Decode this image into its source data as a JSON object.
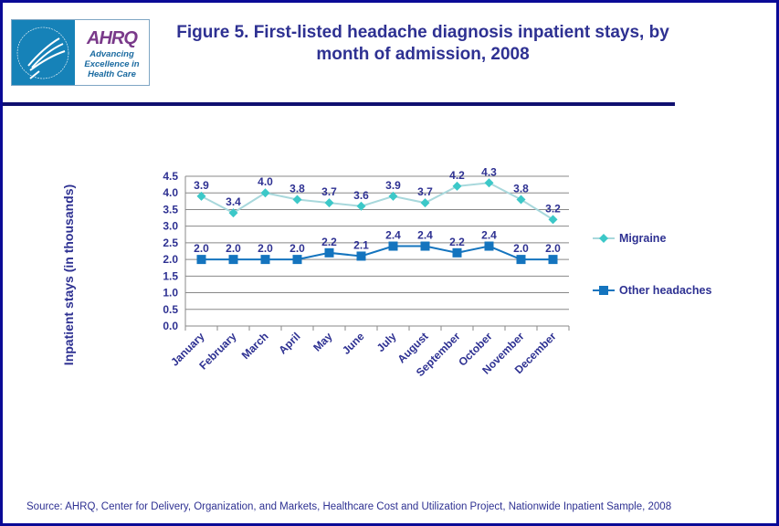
{
  "logo": {
    "agency": "AHRQ",
    "tagline": [
      "Advancing",
      "Excellence in",
      "Health Care"
    ],
    "seal_text": "DEPARTMENT OF HEALTH & HUMAN SERVICES USA"
  },
  "title": "Figure 5. First-listed headache diagnosis inpatient stays, by month of admission, 2008",
  "source": "Source: AHRQ,  Center for Delivery, Organization, and Markets, Healthcare Cost and Utilization Project, Nationwide Inpatient Sample, 2008",
  "chart_data": {
    "type": "line",
    "title": "Figure 5. First-listed headache diagnosis inpatient stays, by month of admission, 2008",
    "xlabel": "",
    "ylabel": "Inpatient stays (in thousands)",
    "ylim": [
      0,
      4.5
    ],
    "yticks": [
      "0.0",
      "0.5",
      "1.0",
      "1.5",
      "2.0",
      "2.5",
      "3.0",
      "3.5",
      "4.0",
      "4.5"
    ],
    "grid": true,
    "legend": "right",
    "categories": [
      "January",
      "February",
      "March",
      "April",
      "May",
      "June",
      "July",
      "August",
      "September",
      "October",
      "November",
      "December"
    ],
    "series": [
      {
        "name": "Migraine",
        "color": "#a8d8dc",
        "marker": "diamond",
        "marker_color": "#3cc8c8",
        "values": [
          3.9,
          3.4,
          4.0,
          3.8,
          3.7,
          3.6,
          3.9,
          3.7,
          4.2,
          4.3,
          3.8,
          3.2
        ]
      },
      {
        "name": "Other headaches",
        "color": "#1474be",
        "marker": "square",
        "marker_color": "#1474be",
        "values": [
          2.0,
          2.0,
          2.0,
          2.0,
          2.2,
          2.1,
          2.4,
          2.4,
          2.2,
          2.4,
          2.0,
          2.0
        ]
      }
    ]
  }
}
